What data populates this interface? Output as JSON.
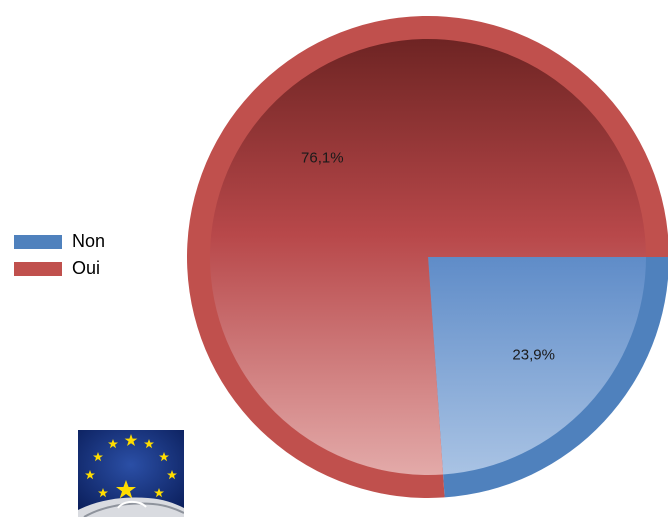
{
  "chart_data": {
    "type": "pie",
    "title": "",
    "slices": [
      {
        "label": "Non",
        "value": 23.9,
        "value_label": "23,9%",
        "color": "#4f81bd"
      },
      {
        "label": "Oui",
        "value": 76.1,
        "value_label": "76,1%",
        "color": "#c0504d"
      }
    ],
    "start_angle_deg": 0,
    "direction": "clockwise",
    "legend_position": "left"
  },
  "legend": {
    "items": [
      {
        "label": "Non",
        "color": "#4f81bd"
      },
      {
        "label": "Oui",
        "color": "#c0504d"
      }
    ]
  },
  "logo": {
    "icon": "eu-stars-logo-icon"
  }
}
